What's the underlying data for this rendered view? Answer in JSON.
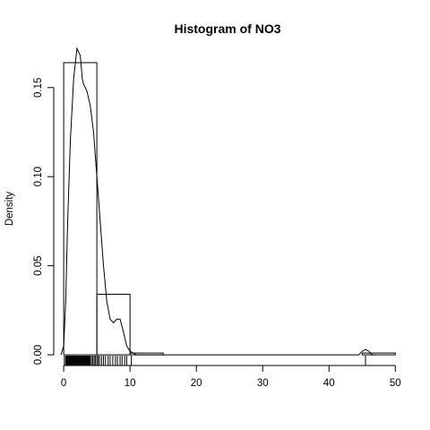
{
  "chart_data": {
    "type": "bar",
    "title": "Histogram of  NO3",
    "xlabel": "",
    "ylabel": "Density",
    "xlim": [
      -1.5,
      50.5
    ],
    "ylim": [
      -0.006,
      0.169
    ],
    "grid": false,
    "legend": "none",
    "x_ticks": [
      0,
      10,
      20,
      30,
      40,
      50
    ],
    "y_ticks": [
      0.0,
      0.05,
      0.1,
      0.15
    ],
    "y_tick_labels": [
      "0.00",
      "0.05",
      "0.10",
      "0.15"
    ],
    "bins": [
      {
        "x0": 0,
        "x1": 5,
        "density": 0.164
      },
      {
        "x0": 5,
        "x1": 10,
        "density": 0.034
      },
      {
        "x0": 10,
        "x1": 15,
        "density": 0.001
      },
      {
        "x0": 15,
        "x1": 20,
        "density": 0
      },
      {
        "x0": 20,
        "x1": 25,
        "density": 0
      },
      {
        "x0": 25,
        "x1": 30,
        "density": 0
      },
      {
        "x0": 30,
        "x1": 35,
        "density": 0
      },
      {
        "x0": 35,
        "x1": 40,
        "density": 0
      },
      {
        "x0": 40,
        "x1": 45,
        "density": 0
      },
      {
        "x0": 45,
        "x1": 50,
        "density": 0.001
      }
    ],
    "density_curve": {
      "x": [
        -0.4,
        0,
        0.3,
        0.6,
        1.0,
        1.5,
        2.0,
        2.5,
        2.8,
        3.0,
        3.5,
        4.0,
        4.5,
        5.0,
        5.5,
        6.0,
        6.5,
        7.0,
        7.5,
        8.0,
        8.5,
        9.0,
        9.5,
        10.0,
        10.5,
        11.0,
        12.0,
        44.5,
        45.0,
        45.5,
        46.0,
        46.5,
        47.0
      ],
      "y": [
        0.0,
        0.005,
        0.03,
        0.075,
        0.12,
        0.155,
        0.172,
        0.168,
        0.155,
        0.152,
        0.148,
        0.14,
        0.125,
        0.1,
        0.075,
        0.05,
        0.03,
        0.02,
        0.018,
        0.02,
        0.02,
        0.013,
        0.005,
        0.002,
        0.001,
        0.0,
        0.0,
        0.0,
        0.002,
        0.003,
        0.002,
        0.0,
        0.0
      ]
    },
    "rug_values": [
      0.1,
      0.3,
      0.4,
      0.5,
      0.6,
      0.7,
      0.8,
      0.9,
      1.0,
      1.1,
      1.2,
      1.3,
      1.4,
      1.5,
      1.6,
      1.7,
      1.8,
      1.9,
      2.0,
      2.1,
      2.2,
      2.3,
      2.4,
      2.5,
      2.6,
      2.7,
      2.8,
      2.9,
      3.0,
      3.1,
      3.2,
      3.3,
      3.4,
      3.5,
      3.6,
      3.7,
      3.8,
      3.9,
      4.0,
      4.2,
      4.4,
      4.6,
      4.8,
      5.0,
      5.2,
      5.4,
      5.7,
      6.0,
      6.3,
      6.7,
      7.0,
      7.4,
      7.8,
      8.1,
      8.5,
      8.8,
      9.2,
      9.5,
      10.2,
      45.5
    ],
    "colors": {
      "line": "#000000",
      "bar_fill": "none",
      "background": "#ffffff"
    }
  }
}
